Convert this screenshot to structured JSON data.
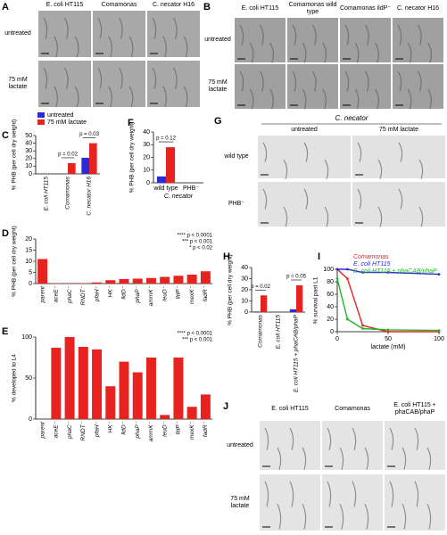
{
  "figures": [
    {
      "panel": "A",
      "columns": [
        "E. coli HT115",
        "Comamonas",
        "C. necator H16"
      ],
      "rows": [
        "untreated",
        "75 mM lactate"
      ]
    },
    {
      "panel": "B",
      "columns": [
        "E. coli HT115",
        "Comamonas wild type",
        "Comamonas ildP⁻",
        "C. necator H16"
      ],
      "rows": [
        "untreated",
        "75 mM lactate"
      ]
    },
    {
      "panel": "G",
      "title": "C. necator",
      "columns": [
        "untreated",
        "75 mM lactate"
      ],
      "rows": [
        "wild type",
        "PHB⁻"
      ]
    },
    {
      "panel": "J",
      "columns": [
        "E. coli HT115",
        "Comamonas",
        "E. coli HT115 + phaCAB/phaP"
      ],
      "rows": [
        "untreated",
        "75 mM lactate"
      ]
    }
  ],
  "chart_data": [
    {
      "type": "bar",
      "panel": "C",
      "ylabel": "% PHB (per cell dry weight)",
      "categories": [
        "E. coli HT115",
        "Comamonas",
        "C. necator H16"
      ],
      "series": [
        {
          "name": "untreated",
          "color": "#2b2bd9",
          "values": [
            0,
            0.5,
            21
          ]
        },
        {
          "name": "75 mM lactate",
          "color": "#e8231f",
          "values": [
            0,
            14,
            40
          ]
        }
      ],
      "ylim": [
        0,
        50
      ],
      "yticks": [
        0,
        10,
        20,
        30,
        40,
        50
      ],
      "legend": "top-left",
      "annotations": [
        "p = 0.02",
        "p = 0.03"
      ]
    },
    {
      "type": "bar",
      "panel": "F",
      "ylabel": "% PHB (per cell dry weight)",
      "subtitle": "C. necator",
      "categories": [
        "wild type",
        "PHB⁻"
      ],
      "series": [
        {
          "name": "untreated",
          "color": "#2b2bd9",
          "values": [
            5,
            0
          ]
        },
        {
          "name": "75 mM lactate",
          "color": "#e8231f",
          "values": [
            28,
            0
          ]
        }
      ],
      "ylim": [
        0,
        40
      ],
      "yticks": [
        0,
        10,
        20,
        30,
        40
      ],
      "annotations": [
        "p = 0.12"
      ]
    },
    {
      "type": "bar",
      "panel": "D",
      "ylabel": "% PHB (per cell dry weight)",
      "categories": [
        "parent",
        "aceE⁻",
        "phaC⁻",
        "RNDT⁻",
        "pfaH⁻",
        "HK⁻",
        "lldD⁻",
        "phaP⁻",
        "ammK⁻",
        "leuD⁻",
        "lldP⁻",
        "mexK⁻",
        "fadR⁻"
      ],
      "values": [
        11,
        0.2,
        0.1,
        0.2,
        0.5,
        1.5,
        2,
        2.2,
        2.5,
        3,
        3.5,
        4,
        5.5
      ],
      "color": "#e8231f",
      "ylim": [
        0,
        20
      ],
      "yticks": [
        0,
        5,
        10,
        15,
        20
      ],
      "annotations": [
        "**** p < 0.0001",
        "*** p < 0.001",
        "* p < 0.02"
      ]
    },
    {
      "type": "bar",
      "panel": "E",
      "ylabel": "% developed to L4",
      "categories": [
        "parent",
        "aceE⁻",
        "phaC⁻",
        "RNDT⁻",
        "pfaH⁻",
        "HK⁻",
        "lldD⁻",
        "phaP⁻",
        "ammK⁻",
        "leuD⁻",
        "lldP⁻",
        "mexK⁻",
        "fadR⁻"
      ],
      "values": [
        0,
        87,
        100,
        88,
        85,
        40,
        70,
        57,
        75,
        5,
        75,
        15,
        30
      ],
      "color": "#e8231f",
      "ylim": [
        0,
        100
      ],
      "yticks": [
        0,
        50,
        100
      ],
      "annotations": [
        "**** p < 0.0001",
        "*** p < 0.001"
      ]
    },
    {
      "type": "bar",
      "panel": "H",
      "ylabel": "% PHB (per cell dry weight)",
      "categories": [
        "Comamonas",
        "E. coli HT115",
        "E. coli HT115 + phaCAB/phaP"
      ],
      "series": [
        {
          "name": "untreated",
          "color": "#2b2bd9",
          "values": [
            0.5,
            0,
            2.5
          ]
        },
        {
          "name": "75 mM lactate",
          "color": "#e8231f",
          "values": [
            15,
            0,
            24
          ]
        }
      ],
      "ylim": [
        0,
        40
      ],
      "yticks": [
        0,
        10,
        20,
        30,
        40
      ],
      "annotations": [
        "p = 0.02",
        "p = 0.05"
      ]
    },
    {
      "type": "line",
      "panel": "I",
      "ylabel": "% survival past L1",
      "xlabel": "lactate (mM)",
      "x": [
        0,
        10,
        25,
        50,
        100
      ],
      "series": [
        {
          "name": "Comamonas",
          "color": "#e8231f",
          "values": [
            100,
            85,
            10,
            0,
            0
          ]
        },
        {
          "name": "E. coli HT115",
          "color": "#2b2bd9",
          "values": [
            100,
            100,
            95,
            95,
            92
          ]
        },
        {
          "name": "E. coli HT115 + phaCAB/phaP",
          "color": "#22b522",
          "values": [
            85,
            20,
            5,
            3,
            2
          ]
        }
      ],
      "xlim": [
        0,
        100
      ],
      "xticks": [
        0,
        50,
        100
      ],
      "ylim": [
        0,
        100
      ],
      "yticks": [
        0,
        20,
        40,
        60,
        80,
        100
      ],
      "legend": "top-right"
    }
  ]
}
